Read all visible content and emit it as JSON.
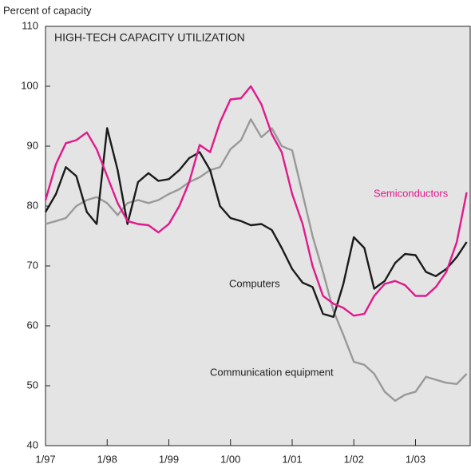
{
  "chart_data": {
    "type": "line",
    "title": "HIGH-TECH CAPACITY UTILIZATION",
    "y_label": "Percent of capacity",
    "x": [
      1997,
      1997.17,
      1997.33,
      1997.5,
      1997.67,
      1997.83,
      1998,
      1998.17,
      1998.33,
      1998.5,
      1998.67,
      1998.83,
      1999,
      1999.17,
      1999.33,
      1999.5,
      1999.67,
      1999.83,
      2000,
      2000.17,
      2000.33,
      2000.5,
      2000.67,
      2000.83,
      2001,
      2001.17,
      2001.33,
      2001.5,
      2001.67,
      2001.83,
      2002,
      2002.17,
      2002.33,
      2002.5,
      2002.67,
      2002.83,
      2003,
      2003.17,
      2003.33,
      2003.5,
      2003.67,
      2003.83
    ],
    "series": [
      {
        "name": "Semiconductors",
        "color": "#e0198c",
        "values": [
          81,
          87,
          90.5,
          91,
          92.3,
          89.5,
          85,
          80.5,
          77.5,
          77,
          76.8,
          75.6,
          77,
          80,
          84,
          90.2,
          89,
          94,
          97.8,
          98,
          100,
          97,
          92,
          89,
          82,
          77,
          70,
          65,
          63.7,
          63,
          61.7,
          62,
          65,
          67,
          67.5,
          66.8,
          65,
          65,
          66.5,
          69,
          74,
          82.3
        ]
      },
      {
        "name": "Computers",
        "color": "#1a1a1a",
        "values": [
          79,
          82,
          86.5,
          85,
          79,
          77,
          93,
          86,
          77,
          84,
          85.5,
          84.2,
          84.5,
          86,
          88,
          89,
          86,
          80,
          78,
          77.5,
          76.8,
          77,
          76,
          73,
          69.5,
          67.2,
          66.5,
          62,
          61.5,
          67,
          74.8,
          73,
          66.2,
          67.5,
          70.5,
          72,
          71.8,
          69,
          68.3,
          69.5,
          71.5,
          74
        ]
      },
      {
        "name": "Communication equipment",
        "color": "#999999",
        "values": [
          77,
          77.5,
          78,
          80,
          81,
          81.5,
          80.5,
          78.5,
          80.5,
          81,
          80.5,
          81,
          82,
          82.8,
          84,
          84.8,
          86,
          86.5,
          89.5,
          91,
          94.5,
          91.5,
          93,
          90,
          89.3,
          82,
          75,
          69,
          62.5,
          58.5,
          54,
          53.5,
          52,
          49,
          47.5,
          48.5,
          49,
          51.5,
          51,
          50.5,
          50.3,
          52
        ]
      }
    ],
    "xlim": [
      1997,
      2003.9
    ],
    "xticks": [
      {
        "value": 1997,
        "label": "1/97"
      },
      {
        "value": 1998,
        "label": "1/98"
      },
      {
        "value": 1999,
        "label": "1/99"
      },
      {
        "value": 2000,
        "label": "1/00"
      },
      {
        "value": 2001,
        "label": "1/01"
      },
      {
        "value": 2002,
        "label": "1/02"
      },
      {
        "value": 2003,
        "label": "1/03"
      }
    ],
    "ylim": [
      40,
      110
    ],
    "yticks": [
      40,
      50,
      60,
      70,
      80,
      90,
      100,
      110
    ]
  }
}
